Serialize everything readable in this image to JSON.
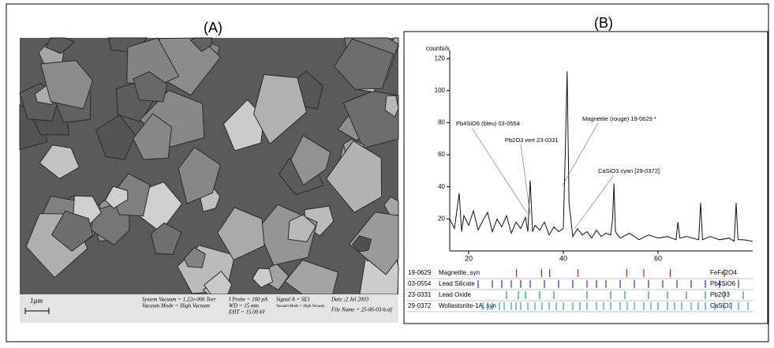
{
  "panel_a": {
    "label": "(A)",
    "scale_bar": "1µm",
    "info": [
      "System Vacuum = 1.22e-006 Torr",
      "Vacuum Mode = High Vacuum",
      "I Probe = 100 pA",
      "WD = 15 mm",
      "EHT = 15.00 kV",
      "Signal A = SE1",
      "Vacuum Mode = High Vacuum",
      "Date :2 Jul 2003",
      "File Name = 25-06-03-b.tif"
    ]
  },
  "chart_data": {
    "type": "line",
    "label": "(B)",
    "y_label": "counts/s",
    "color": "#111111",
    "x": [
      16,
      17,
      18,
      18.5,
      19,
      20,
      21,
      22,
      23,
      24,
      25,
      26,
      27,
      28,
      29,
      30,
      31,
      32,
      32.5,
      33,
      33.5,
      34,
      35,
      36,
      37,
      38,
      39,
      40,
      40.4,
      40.8,
      41.2,
      42,
      43,
      44,
      45,
      46,
      47,
      48,
      49,
      50,
      50.4,
      50.7,
      51,
      52,
      54,
      56,
      58,
      60,
      62,
      63.8,
      64.2,
      64.6,
      66,
      68.6,
      69,
      69.4,
      71,
      73,
      75,
      76.1,
      76.5,
      76.9,
      78,
      80
    ],
    "values": [
      20,
      14,
      36,
      12,
      22,
      16,
      25,
      13,
      19,
      24,
      12,
      20,
      15,
      22,
      11,
      18,
      14,
      21,
      12,
      44,
      12,
      16,
      13,
      18,
      10,
      15,
      12,
      14,
      60,
      112,
      30,
      9,
      14,
      10,
      12,
      8,
      13,
      9,
      11,
      10,
      20,
      42,
      12,
      8,
      11,
      7,
      10,
      8,
      9,
      7,
      18,
      8,
      9,
      7,
      30,
      7,
      9,
      7,
      8,
      6,
      30,
      7,
      7,
      6
    ],
    "xlim": [
      16,
      80
    ],
    "ylim": [
      0,
      125
    ],
    "xticks": [
      20,
      40,
      60
    ],
    "yticks": [
      20,
      40,
      60,
      80,
      100,
      120
    ],
    "annotations": [
      "Pb4SiO6 (bleu) 03-0554",
      "Pb2O3 vert 23-0331",
      "Magnetite (rouge) 19-0629 *",
      "CaSiO3 cyan [29-0372]"
    ],
    "phases": [
      {
        "code": "19-0629",
        "name": "Magnetite, syn",
        "formula": "FeFe2O4",
        "color": "#d62020",
        "sticks": [
          30.1,
          35.4,
          37.1,
          43.1,
          53.4,
          57,
          62.6,
          74
        ]
      },
      {
        "code": "03-0554",
        "name": "Lead Silicate",
        "formula": "Pb4SiO6",
        "color": "#3030b0",
        "sticks": [
          22,
          25,
          27,
          29,
          31,
          33,
          36,
          39,
          42,
          45,
          47,
          49,
          52,
          55,
          58,
          61,
          64,
          67,
          70,
          73,
          77
        ]
      },
      {
        "code": "23-0331",
        "name": "Lead Oxide",
        "formula": "Pb2O3",
        "color": "#20a040",
        "sticks": [
          28,
          30.5,
          32,
          35,
          38,
          45,
          50,
          53,
          58,
          62,
          66,
          70,
          74,
          78
        ]
      },
      {
        "code": "29-0372",
        "name": "Wollastonite-1A, syn",
        "formula": "CaSiO3",
        "color": "#20a0d0",
        "sticks": [
          23,
          24,
          25,
          26.5,
          27.5,
          29,
          30,
          31,
          32.5,
          34,
          35.5,
          37,
          38.5,
          40,
          42,
          43.5,
          45,
          47,
          48.5,
          50,
          52,
          53.5,
          55,
          57,
          58.5,
          60,
          62,
          63.5,
          65,
          67,
          68.5,
          70,
          72,
          74,
          75.5,
          77,
          79
        ]
      }
    ]
  }
}
